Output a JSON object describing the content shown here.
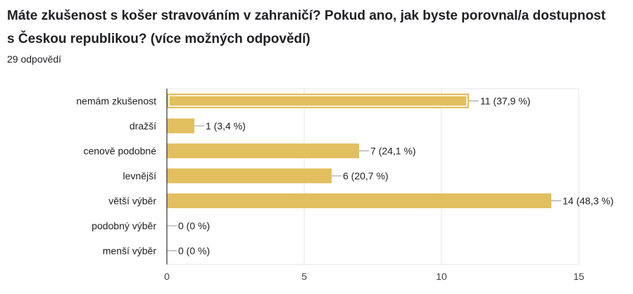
{
  "header": {
    "title": "Máte zkušenost s košer stravováním v zahraničí? Pokud ano, jak byste porovnal/a dostupnost s Českou republikou? (více možných odpovědí)",
    "response_count": "29 odpovědí"
  },
  "chart_data": {
    "type": "bar",
    "orientation": "horizontal",
    "categories": [
      "nemám zkušenost",
      "dražší",
      "cenově podobné",
      "levnější",
      "větší výběr",
      "podobný výběr",
      "menší výběr"
    ],
    "values": [
      11,
      1,
      7,
      6,
      14,
      0,
      0
    ],
    "value_labels": [
      "11 (37,9 %)",
      "1 (3,4 %)",
      "7 (24,1 %)",
      "6 (20,7 %)",
      "14 (48,3 %)",
      "0 (0 %)",
      "0 (0 %)"
    ],
    "highlighted_category": "nemám zkušenost",
    "xlim": [
      0,
      15
    ],
    "xticks": [
      0,
      5,
      10,
      15
    ],
    "grid": true,
    "colors": {
      "bar": "#e2bf5f",
      "highlight_border": "#ffffff",
      "grid": "#e6e6e6",
      "axis": "#333333",
      "leader": "#999999"
    }
  }
}
